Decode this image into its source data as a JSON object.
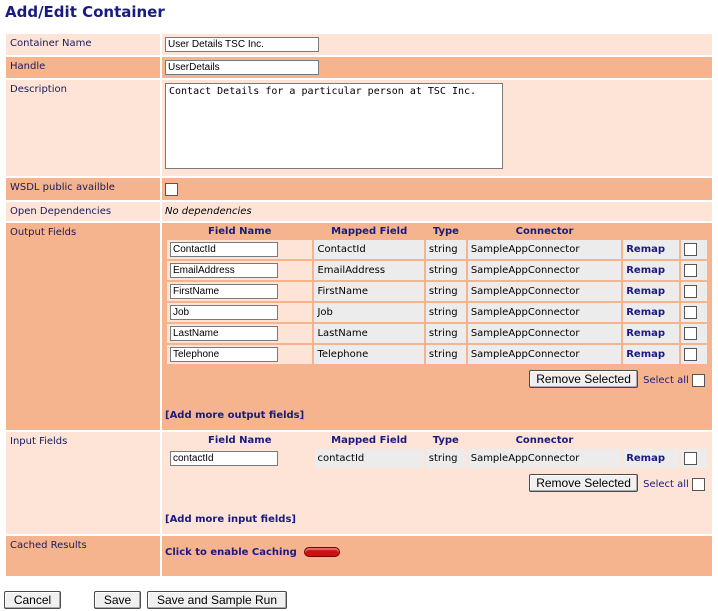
{
  "page": {
    "title": "Add/Edit Container"
  },
  "form": {
    "container_name": {
      "label": "Container Name",
      "value": "User Details TSC Inc."
    },
    "handle": {
      "label": "Handle",
      "value": "UserDetails"
    },
    "description": {
      "label": "Description",
      "value": "Contact Details for a particular person at TSC Inc."
    },
    "wsdl": {
      "label": "WSDL public availble",
      "checked": false
    },
    "open_dependencies": {
      "label": "Open Dependencies",
      "value": "No dependencies"
    },
    "output_fields": {
      "label": "Output Fields",
      "headers": [
        "Field Name",
        "Mapped Field",
        "Type",
        "Connector"
      ],
      "rows": [
        {
          "field_name": "ContactId",
          "mapped": "ContactId",
          "type": "string",
          "connector": "SampleAppConnector",
          "remap": "Remap"
        },
        {
          "field_name": "EmailAddress",
          "mapped": "EmailAddress",
          "type": "string",
          "connector": "SampleAppConnector",
          "remap": "Remap"
        },
        {
          "field_name": "FirstName",
          "mapped": "FirstName",
          "type": "string",
          "connector": "SampleAppConnector",
          "remap": "Remap"
        },
        {
          "field_name": "Job",
          "mapped": "Job",
          "type": "string",
          "connector": "SampleAppConnector",
          "remap": "Remap"
        },
        {
          "field_name": "LastName",
          "mapped": "LastName",
          "type": "string",
          "connector": "SampleAppConnector",
          "remap": "Remap"
        },
        {
          "field_name": "Telephone",
          "mapped": "Telephone",
          "type": "string",
          "connector": "SampleAppConnector",
          "remap": "Remap"
        }
      ],
      "remove_label": "Remove Selected",
      "select_all_label": "Select all",
      "add_more_label": "[Add more output fields]"
    },
    "input_fields": {
      "label": "Input Fields",
      "headers": [
        "Field Name",
        "Mapped Field",
        "Type",
        "Connector"
      ],
      "rows": [
        {
          "field_name": "contactId",
          "mapped": "contactId",
          "type": "string",
          "connector": "SampleAppConnector",
          "remap": "Remap"
        }
      ],
      "remove_label": "Remove Selected",
      "select_all_label": "Select all",
      "add_more_label": "[Add more input fields]"
    },
    "cached_results": {
      "label": "Cached Results",
      "link": "Click to enable Caching"
    }
  },
  "buttons": {
    "cancel": "Cancel",
    "save": "Save",
    "save_run": "Save and Sample Run"
  }
}
